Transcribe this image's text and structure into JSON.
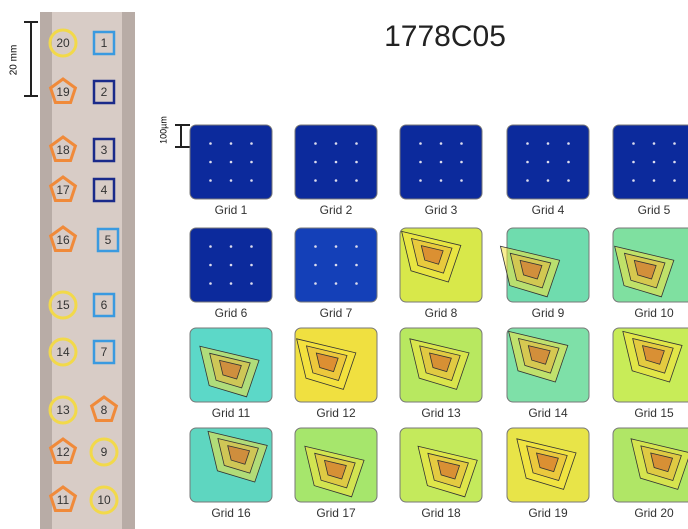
{
  "title": "1778C05",
  "sample_scale": "20 mm",
  "grid_scale": "100µm",
  "marker_rows": [
    [
      {
        "label": "20",
        "shape": "circle"
      },
      {
        "label": "1",
        "shape": "square-light"
      }
    ],
    [
      {
        "label": "19",
        "shape": "pentagon"
      },
      {
        "label": "2",
        "shape": "square-dark"
      }
    ],
    [
      {
        "label": "18",
        "shape": "pentagon"
      },
      {
        "label": "3",
        "shape": "square-dark"
      }
    ],
    [
      {
        "label": "17",
        "shape": "pentagon"
      },
      {
        "label": "4",
        "shape": "square-dark"
      }
    ],
    [
      {
        "label": "16",
        "shape": "pentagon"
      },
      {
        "label": "5",
        "shape": "square-light"
      }
    ],
    [
      {
        "label": "15",
        "shape": "circle"
      },
      {
        "label": "6",
        "shape": "square-light"
      }
    ],
    [
      {
        "label": "14",
        "shape": "circle"
      },
      {
        "label": "7",
        "shape": "square-light"
      }
    ],
    [
      {
        "label": "13",
        "shape": "circle"
      },
      {
        "label": "8",
        "shape": "pentagon"
      }
    ],
    [
      {
        "label": "12",
        "shape": "pentagon"
      },
      {
        "label": "9",
        "shape": "circle"
      }
    ],
    [
      {
        "label": "11",
        "shape": "pentagon"
      },
      {
        "label": "10",
        "shape": "circle"
      }
    ]
  ],
  "grids": [
    {
      "label": "Grid 1",
      "color": "#0c2a9c"
    },
    {
      "label": "Grid 2",
      "color": "#0c2a9c"
    },
    {
      "label": "Grid 3",
      "color": "#0c2a9c"
    },
    {
      "label": "Grid 4",
      "color": "#0c2a9c"
    },
    {
      "label": "Grid 5",
      "color": "#0c2a9c"
    },
    {
      "label": "Grid 6",
      "color": "#0c2a9c"
    },
    {
      "label": "Grid 7",
      "color": "#1440b8"
    },
    {
      "label": "Grid 8",
      "color": "#d8e84a"
    },
    {
      "label": "Grid 9",
      "color": "#6fdcae"
    },
    {
      "label": "Grid 10",
      "color": "#7fe0a0"
    },
    {
      "label": "Grid 11",
      "color": "#5cd8c8"
    },
    {
      "label": "Grid 12",
      "color": "#f0e040"
    },
    {
      "label": "Grid 13",
      "color": "#b8e860"
    },
    {
      "label": "Grid 14",
      "color": "#7ee0a8"
    },
    {
      "label": "Grid 15",
      "color": "#c8ec58"
    },
    {
      "label": "Grid 16",
      "color": "#5ed6c0"
    },
    {
      "label": "Grid 17",
      "color": "#a6e66c"
    },
    {
      "label": "Grid 18",
      "color": "#c4ea5c"
    },
    {
      "label": "Grid 19",
      "color": "#e8e448"
    },
    {
      "label": "Grid 20",
      "color": "#b0e666"
    }
  ]
}
